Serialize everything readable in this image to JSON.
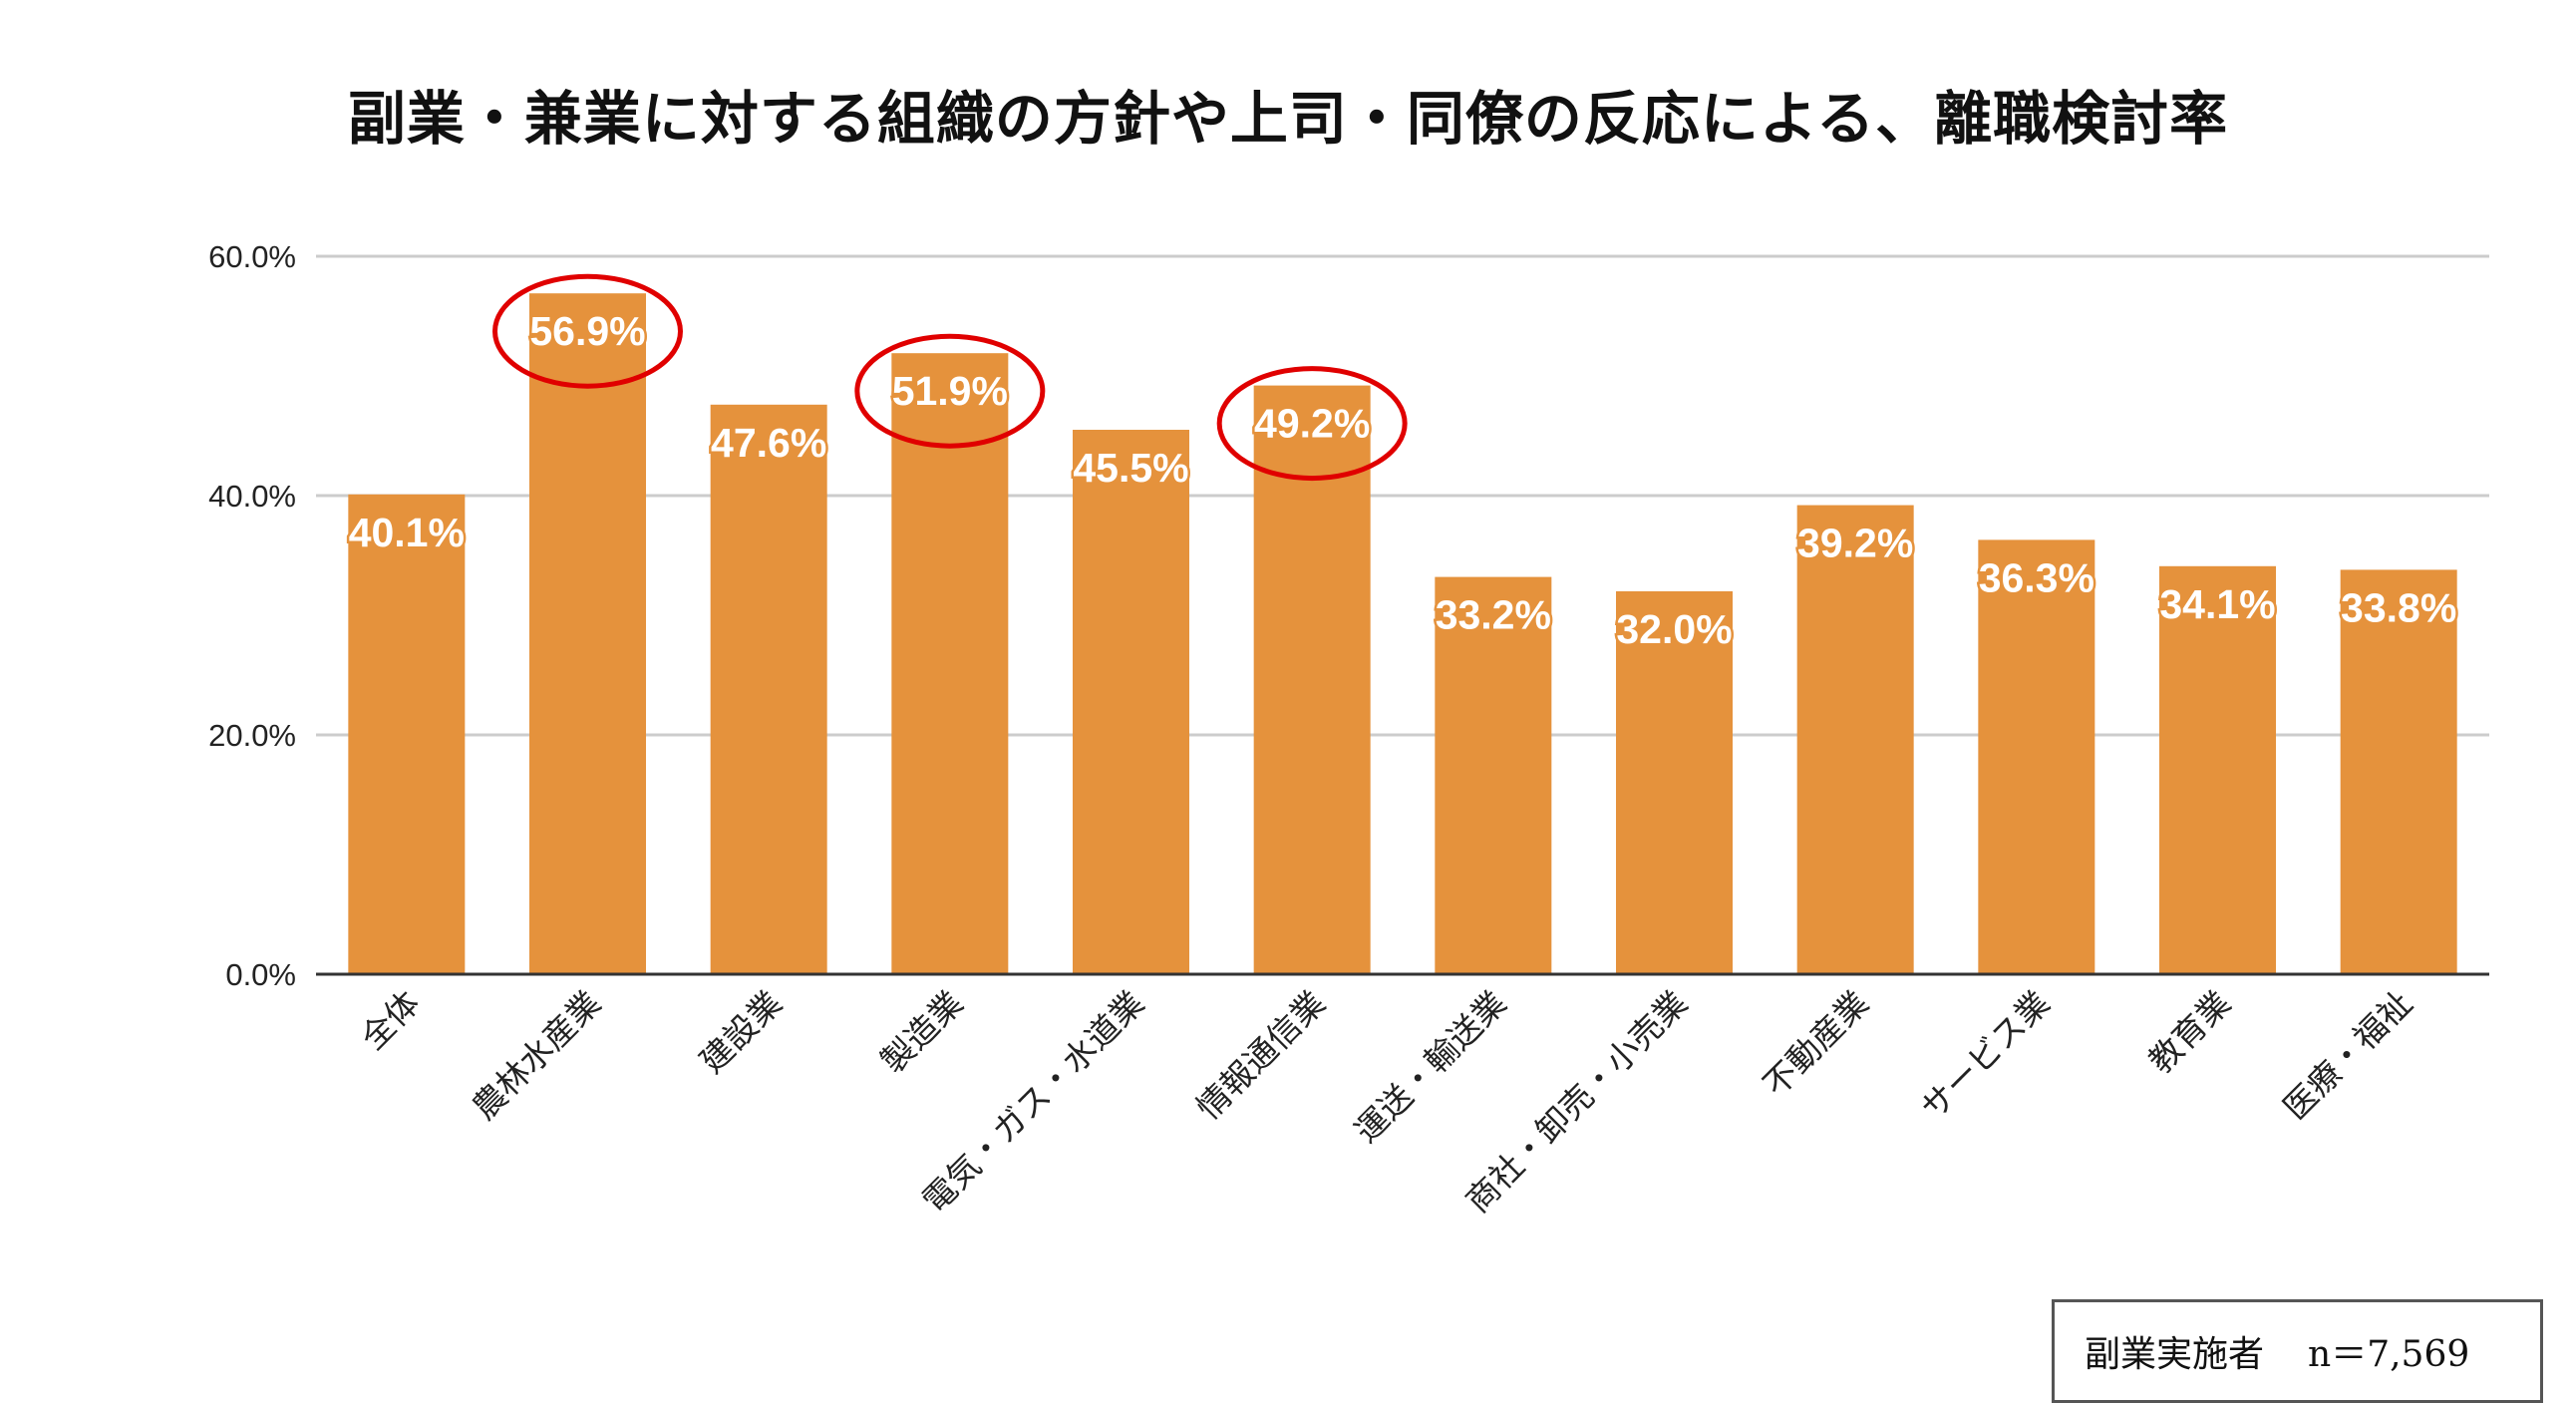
{
  "chart_data": {
    "type": "bar",
    "title": "副業・兼業に対する組織の方針や上司・同僚の反応による、離職検討率",
    "categories": [
      "全体",
      "農林水産業",
      "建設業",
      "製造業",
      "電気・ガス・水道業",
      "情報通信業",
      "運送・輸送業",
      "商社・卸売・小売業",
      "不動産業",
      "サービス業",
      "教育業",
      "医療・福祉"
    ],
    "values": [
      40.1,
      56.9,
      47.6,
      51.9,
      45.5,
      49.2,
      33.2,
      32.0,
      39.2,
      36.3,
      34.1,
      33.8
    ],
    "data_labels": [
      "40.1%",
      "56.9%",
      "47.6%",
      "51.9%",
      "45.5%",
      "49.2%",
      "33.2%",
      "32.0%",
      "39.2%",
      "36.3%",
      "34.1%",
      "33.8%"
    ],
    "highlighted": [
      "農林水産業",
      "製造業",
      "情報通信業"
    ],
    "ylim": [
      0,
      60
    ],
    "yticks": [
      "0.0%",
      "20.0%",
      "40.0%",
      "60.0%"
    ],
    "ytick_values": [
      0,
      20,
      40,
      60
    ],
    "xlabel": "",
    "ylabel": "",
    "grid": true,
    "colors": {
      "bar": "#e5923c",
      "highlight": "#e00000",
      "grid": "#cccccc",
      "axis": "#333333"
    }
  },
  "note": {
    "label": "副業実施者",
    "n": "n＝7,569"
  }
}
